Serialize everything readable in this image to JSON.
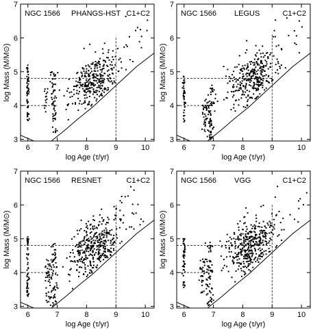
{
  "figure": {
    "axis_sub": {
      "msun": "⊙"
    }
  },
  "chart_data": [
    {
      "type": "scatter",
      "object": "NGC 1566",
      "catalog": "PHANGS-HST",
      "classes": "C1+C2",
      "xlabel": "log Age (τ/yr)",
      "ylabel": "log Mass (M/M⊙)",
      "xlim": [
        5.75,
        10.3
      ],
      "ylim": [
        2.95,
        7.0
      ],
      "xticks": [
        6,
        7,
        8,
        9,
        10
      ],
      "yticks": [
        3,
        4,
        5,
        6,
        7
      ],
      "seed": 11,
      "n_points": 520,
      "guide_mass": [
        4.8,
        4.0
      ],
      "guide_age": 9.0,
      "guide_top": 6.0,
      "completeness_limit": [
        [
          5.75,
          3.12
        ],
        [
          6.2,
          2.95
        ]
      ],
      "completeness_curve": [
        [
          6.8,
          2.95
        ],
        [
          7.3,
          3.3
        ],
        [
          7.7,
          3.6
        ],
        [
          8.2,
          3.95
        ],
        [
          8.7,
          4.35
        ],
        [
          9.2,
          4.75
        ],
        [
          9.7,
          5.15
        ],
        [
          10.3,
          5.55
        ]
      ],
      "clusters": [
        {
          "x": 6.0,
          "y_range": [
            3.5,
            5.25
          ],
          "n": 55,
          "spread": 0.02
        },
        {
          "x": 6.6,
          "y_range": [
            3.8,
            4.5
          ],
          "n": 14,
          "spread": 0.03
        },
        {
          "x": 6.9,
          "y_range": [
            3.2,
            5.0
          ],
          "n": 60,
          "spread": 0.06
        },
        {
          "x": 8.3,
          "y_range": [
            3.7,
            5.8
          ],
          "n": 320,
          "spread": 0.42
        }
      ]
    },
    {
      "type": "scatter",
      "object": "NGC 1566",
      "catalog": "LEGUS",
      "classes": "C1+C2",
      "xlabel": "log Age (τ/yr)",
      "ylabel": "log Mass (M/M⊙)",
      "xlim": [
        5.75,
        10.3
      ],
      "ylim": [
        2.95,
        7.0
      ],
      "xticks": [
        6,
        7,
        8,
        9,
        10
      ],
      "yticks": [
        3,
        4,
        5,
        6,
        7
      ],
      "seed": 23,
      "n_points": 560,
      "guide_mass": [
        4.8,
        4.0
      ],
      "guide_age": 9.0,
      "guide_top": 6.1,
      "completeness_limit": [
        [
          5.75,
          3.12
        ],
        [
          6.2,
          2.95
        ]
      ],
      "completeness_curve": [
        [
          6.8,
          2.95
        ],
        [
          7.3,
          3.3
        ],
        [
          7.7,
          3.6
        ],
        [
          8.2,
          3.95
        ],
        [
          8.7,
          4.35
        ],
        [
          9.2,
          4.75
        ],
        [
          9.7,
          5.15
        ],
        [
          10.3,
          5.55
        ]
      ],
      "clusters": [
        {
          "x": 6.0,
          "y_range": [
            3.5,
            4.9
          ],
          "n": 40,
          "spread": 0.02
        },
        {
          "x": 6.7,
          "y_range": [
            3.2,
            4.2
          ],
          "n": 30,
          "spread": 0.05
        },
        {
          "x": 6.9,
          "y_range": [
            3.0,
            4.6
          ],
          "n": 70,
          "spread": 0.06
        },
        {
          "x": 8.3,
          "y_range": [
            3.7,
            5.9
          ],
          "n": 330,
          "spread": 0.42
        }
      ]
    },
    {
      "type": "scatter",
      "object": "NGC 1566",
      "catalog": "RESNET",
      "classes": "C1+C2",
      "xlabel": "log Age (τ/yr)",
      "ylabel": "log Mass (M/M⊙)",
      "xlim": [
        5.75,
        10.3
      ],
      "ylim": [
        2.95,
        7.0
      ],
      "xticks": [
        6,
        7,
        8,
        9,
        10
      ],
      "yticks": [
        3,
        4,
        5,
        6,
        7
      ],
      "seed": 37,
      "n_points": 640,
      "guide_mass": [
        4.8,
        4.0
      ],
      "guide_age": 9.0,
      "guide_top": 6.0,
      "completeness_limit": [
        [
          5.75,
          3.12
        ],
        [
          6.2,
          2.95
        ]
      ],
      "completeness_curve": [
        [
          6.8,
          2.95
        ],
        [
          7.3,
          3.3
        ],
        [
          7.7,
          3.6
        ],
        [
          8.2,
          3.95
        ],
        [
          8.7,
          4.35
        ],
        [
          9.2,
          4.75
        ],
        [
          9.7,
          5.15
        ],
        [
          10.3,
          5.55
        ]
      ],
      "clusters": [
        {
          "x": 6.0,
          "y_range": [
            3.3,
            5.1
          ],
          "n": 55,
          "spread": 0.02
        },
        {
          "x": 6.7,
          "y_range": [
            3.1,
            4.4
          ],
          "n": 45,
          "spread": 0.06
        },
        {
          "x": 6.9,
          "y_range": [
            3.0,
            4.9
          ],
          "n": 55,
          "spread": 0.06
        },
        {
          "x": 8.3,
          "y_range": [
            3.8,
            5.8
          ],
          "n": 380,
          "spread": 0.42
        }
      ]
    },
    {
      "type": "scatter",
      "object": "NGC 1566",
      "catalog": "VGG",
      "classes": "C1+C2",
      "xlabel": "log Age (τ/yr)",
      "ylabel": "log Mass (M/M⊙)",
      "xlim": [
        5.75,
        10.3
      ],
      "ylim": [
        2.95,
        7.0
      ],
      "xticks": [
        6,
        7,
        8,
        9,
        10
      ],
      "yticks": [
        3,
        4,
        5,
        6,
        7
      ],
      "seed": 51,
      "n_points": 660,
      "guide_mass": [
        4.8,
        4.0
      ],
      "guide_age": 9.0,
      "guide_top": 6.0,
      "completeness_limit": [
        [
          5.75,
          3.12
        ],
        [
          6.2,
          2.95
        ]
      ],
      "completeness_curve": [
        [
          6.8,
          2.95
        ],
        [
          7.3,
          3.3
        ],
        [
          7.7,
          3.6
        ],
        [
          8.2,
          3.95
        ],
        [
          8.7,
          4.35
        ],
        [
          9.2,
          4.75
        ],
        [
          9.7,
          5.15
        ],
        [
          10.3,
          5.55
        ]
      ],
      "clusters": [
        {
          "x": 6.0,
          "y_range": [
            3.5,
            5.0
          ],
          "n": 45,
          "spread": 0.02
        },
        {
          "x": 6.6,
          "y_range": [
            3.4,
            4.4
          ],
          "n": 30,
          "spread": 0.05
        },
        {
          "x": 6.85,
          "y_range": [
            3.0,
            4.9
          ],
          "n": 70,
          "spread": 0.07
        },
        {
          "x": 8.3,
          "y_range": [
            3.8,
            5.9
          ],
          "n": 400,
          "spread": 0.42
        }
      ]
    }
  ]
}
